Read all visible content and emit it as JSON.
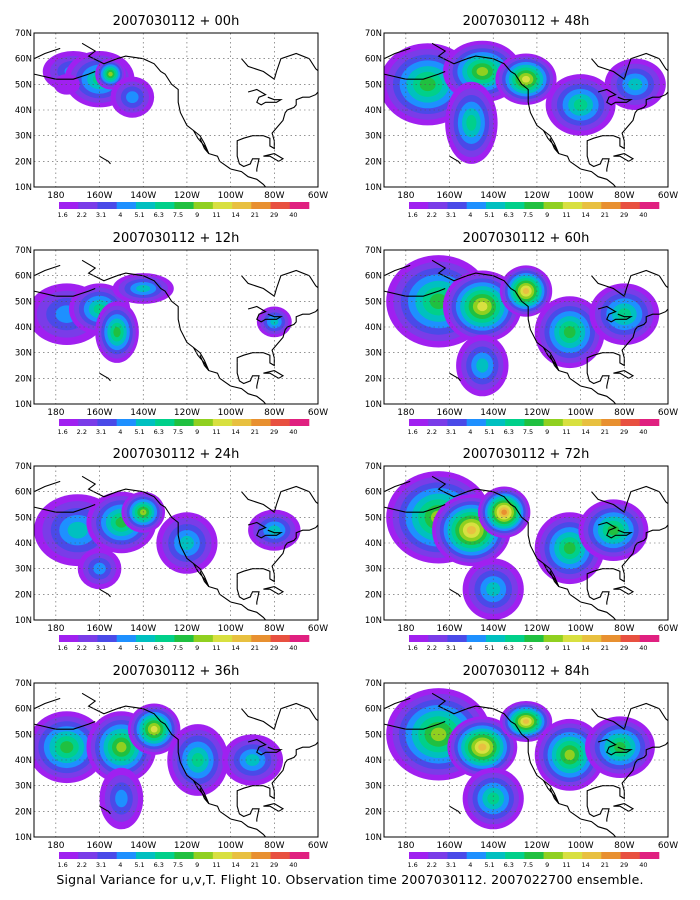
{
  "caption": "Signal Variance for u,v,T. Flight 10. Observation time 2007030112. 2007022700 ensemble.",
  "map": {
    "lat_labels": [
      "70N",
      "60N",
      "50N",
      "40N",
      "30N",
      "20N",
      "10N"
    ],
    "lon_labels": [
      "180",
      "160W",
      "140W",
      "120W",
      "100W",
      "80W",
      "60W"
    ],
    "lon_range": [
      -190,
      -60
    ],
    "lat_range": [
      10,
      70
    ],
    "grid": "dotted"
  },
  "colorbar": {
    "levels": [
      "1.6",
      "2.2",
      "3.1",
      "4",
      "5.1",
      "6.3",
      "7.5",
      "9",
      "11",
      "14",
      "21",
      "29",
      "40"
    ],
    "colors": [
      "#a020f0",
      "#7a3ce8",
      "#4a4ae8",
      "#1e90ff",
      "#00c0c0",
      "#00d08a",
      "#20c040",
      "#90d020",
      "#d8e040",
      "#e8c040",
      "#e89030",
      "#e85040",
      "#e02080"
    ]
  },
  "panels": [
    {
      "id": "p00",
      "title": "2007030112 + 00h",
      "col": 0,
      "row": 0,
      "lead": 0
    },
    {
      "id": "p48",
      "title": "2007030112 + 48h",
      "col": 1,
      "row": 0,
      "lead": 48
    },
    {
      "id": "p12",
      "title": "2007030112 + 12h",
      "col": 0,
      "row": 1,
      "lead": 12
    },
    {
      "id": "p60",
      "title": "2007030112 + 60h",
      "col": 1,
      "row": 1,
      "lead": 60
    },
    {
      "id": "p24",
      "title": "2007030112 + 24h",
      "col": 0,
      "row": 2,
      "lead": 24
    },
    {
      "id": "p72",
      "title": "2007030112 + 72h",
      "col": 1,
      "row": 2,
      "lead": 72
    },
    {
      "id": "p36",
      "title": "2007030112 + 36h",
      "col": 0,
      "row": 3,
      "lead": 36
    },
    {
      "id": "p84",
      "title": "2007030112 + 84h",
      "col": 1,
      "row": 3,
      "lead": 84
    }
  ],
  "blobs": {
    "p00": [
      [
        -172,
        55,
        14,
        8,
        3
      ],
      [
        -160,
        52,
        16,
        11,
        5
      ],
      [
        -155,
        54,
        7,
        6,
        7
      ],
      [
        -145,
        45,
        10,
        8,
        3
      ],
      [
        -175,
        50,
        6,
        4,
        0
      ]
    ],
    "p12": [
      [
        -175,
        45,
        18,
        12,
        3
      ],
      [
        -160,
        47,
        14,
        10,
        5
      ],
      [
        -152,
        38,
        10,
        12,
        6
      ],
      [
        -140,
        55,
        14,
        6,
        4
      ],
      [
        -80,
        42,
        8,
        6,
        4
      ]
    ],
    "p24": [
      [
        -170,
        45,
        20,
        14,
        4
      ],
      [
        -150,
        48,
        16,
        12,
        6
      ],
      [
        -140,
        52,
        10,
        8,
        7
      ],
      [
        -120,
        40,
        14,
        12,
        4
      ],
      [
        -80,
        45,
        12,
        8,
        4
      ],
      [
        -160,
        30,
        10,
        8,
        3
      ]
    ],
    "p36": [
      [
        -175,
        45,
        18,
        14,
        6
      ],
      [
        -150,
        45,
        16,
        14,
        7
      ],
      [
        -135,
        52,
        12,
        10,
        8
      ],
      [
        -115,
        40,
        14,
        14,
        5
      ],
      [
        -90,
        40,
        14,
        10,
        4
      ],
      [
        -150,
        25,
        10,
        12,
        3
      ]
    ],
    "p48": [
      [
        -170,
        50,
        22,
        16,
        6
      ],
      [
        -145,
        55,
        18,
        12,
        7
      ],
      [
        -125,
        52,
        14,
        10,
        8
      ],
      [
        -150,
        35,
        12,
        16,
        5
      ],
      [
        -100,
        42,
        16,
        12,
        5
      ],
      [
        -75,
        50,
        14,
        10,
        4
      ]
    ],
    "p60": [
      [
        -165,
        50,
        24,
        18,
        6
      ],
      [
        -145,
        48,
        18,
        14,
        8
      ],
      [
        -125,
        54,
        12,
        10,
        9
      ],
      [
        -105,
        38,
        16,
        14,
        6
      ],
      [
        -80,
        45,
        16,
        12,
        5
      ],
      [
        -145,
        25,
        12,
        12,
        4
      ]
    ],
    "p72": [
      [
        -165,
        50,
        24,
        18,
        7
      ],
      [
        -150,
        45,
        18,
        14,
        9
      ],
      [
        -135,
        52,
        12,
        10,
        10
      ],
      [
        -105,
        38,
        16,
        14,
        6
      ],
      [
        -85,
        45,
        16,
        12,
        6
      ],
      [
        -140,
        22,
        14,
        12,
        4
      ]
    ],
    "p84": [
      [
        -165,
        50,
        24,
        18,
        7
      ],
      [
        -145,
        45,
        16,
        12,
        9
      ],
      [
        -125,
        55,
        12,
        8,
        9
      ],
      [
        -105,
        42,
        16,
        14,
        7
      ],
      [
        -82,
        45,
        16,
        12,
        6
      ],
      [
        -140,
        25,
        14,
        12,
        5
      ]
    ]
  }
}
